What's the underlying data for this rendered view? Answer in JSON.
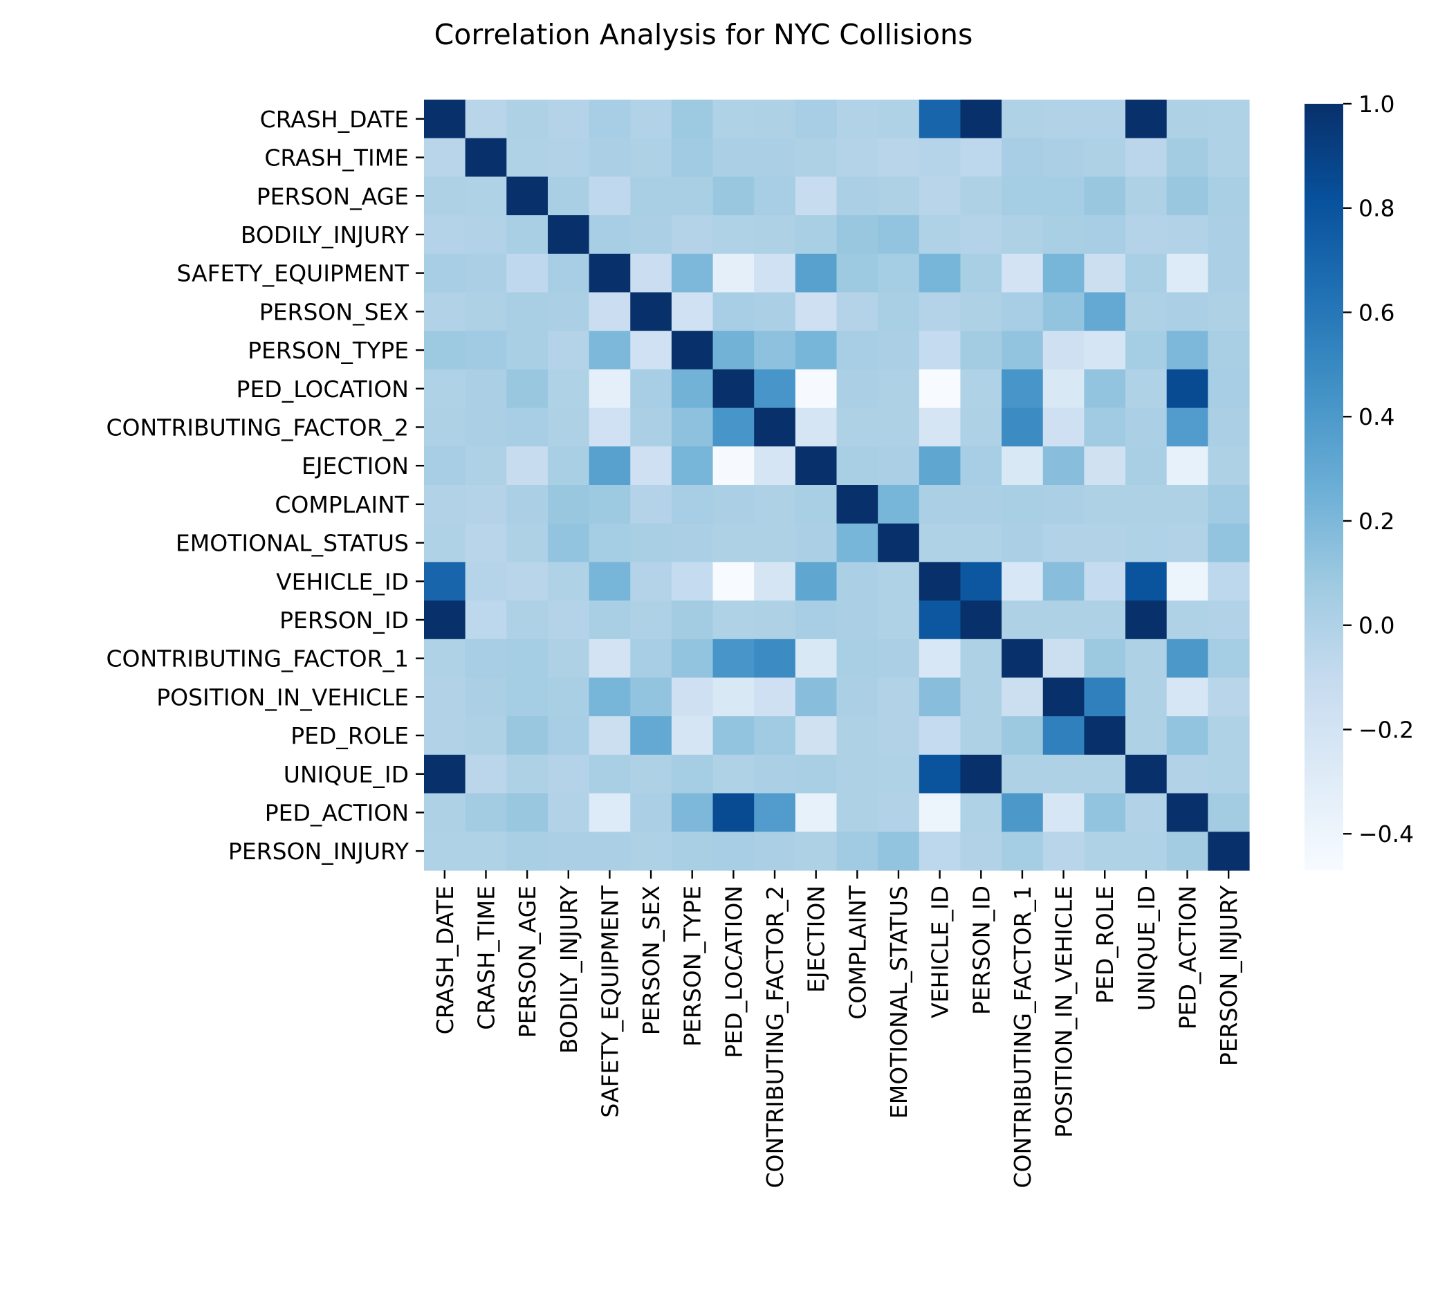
{
  "chart_data": {
    "type": "heatmap",
    "title": "Correlation Analysis for NYC Collisions",
    "xlabel": "",
    "ylabel": "",
    "labels": [
      "CRASH_DATE",
      "CRASH_TIME",
      "PERSON_AGE",
      "BODILY_INJURY",
      "SAFETY_EQUIPMENT",
      "PERSON_SEX",
      "PERSON_TYPE",
      "PED_LOCATION",
      "CONTRIBUTING_FACTOR_2",
      "EJECTION",
      "COMPLAINT",
      "EMOTIONAL_STATUS",
      "VEHICLE_ID",
      "PERSON_ID",
      "CONTRIBUTING_FACTOR_1",
      "POSITION_IN_VEHICLE",
      "PED_ROLE",
      "UNIQUE_ID",
      "PED_ACTION",
      "PERSON_INJURY"
    ],
    "colormap": "Blues",
    "color_range": [
      -0.47,
      1.0
    ],
    "colorbar_ticks": [
      "1.0",
      "0.8",
      "0.6",
      "0.4",
      "0.2",
      "0.0",
      "−0.2",
      "−0.4"
    ],
    "colorbar_tick_values": [
      1.0,
      0.8,
      0.6,
      0.4,
      0.2,
      0.0,
      -0.2,
      -0.4
    ],
    "matrix": [
      [
        1.0,
        -0.04,
        0.01,
        -0.02,
        0.04,
        -0.01,
        0.08,
        0.0,
        0.01,
        0.04,
        -0.01,
        0.0,
        0.7,
        1.0,
        0.0,
        -0.01,
        -0.01,
        1.0,
        0.01,
        0.0
      ],
      [
        -0.04,
        1.0,
        0.0,
        -0.01,
        0.02,
        0.01,
        0.07,
        0.02,
        0.02,
        0.01,
        -0.02,
        -0.04,
        -0.03,
        -0.06,
        0.04,
        0.02,
        0.01,
        -0.05,
        0.06,
        0.0
      ],
      [
        0.01,
        0.0,
        1.0,
        0.03,
        -0.07,
        0.03,
        0.03,
        0.1,
        0.04,
        -0.11,
        0.02,
        0.01,
        -0.04,
        0.01,
        0.05,
        0.05,
        0.1,
        0.01,
        0.1,
        0.03
      ],
      [
        -0.02,
        -0.01,
        0.03,
        1.0,
        0.04,
        0.02,
        -0.02,
        0.0,
        0.01,
        0.03,
        0.1,
        0.12,
        0.0,
        -0.02,
        0.01,
        0.03,
        0.04,
        -0.02,
        -0.01,
        0.02
      ],
      [
        0.04,
        0.02,
        -0.07,
        0.04,
        1.0,
        -0.14,
        0.2,
        -0.33,
        -0.17,
        0.35,
        0.08,
        0.05,
        0.22,
        0.03,
        -0.2,
        0.22,
        -0.15,
        0.03,
        -0.28,
        0.02
      ],
      [
        -0.01,
        0.01,
        0.03,
        0.02,
        -0.14,
        1.0,
        -0.17,
        0.04,
        0.02,
        -0.16,
        -0.02,
        0.03,
        -0.02,
        0.01,
        0.04,
        0.12,
        0.3,
        0.01,
        0.02,
        0.01
      ],
      [
        0.08,
        0.07,
        0.03,
        -0.02,
        0.2,
        -0.17,
        1.0,
        0.24,
        0.14,
        0.22,
        0.04,
        0.02,
        -0.1,
        0.06,
        0.12,
        -0.16,
        -0.22,
        0.05,
        0.2,
        0.03
      ],
      [
        0.0,
        0.02,
        0.1,
        0.0,
        -0.33,
        0.04,
        0.24,
        1.0,
        0.42,
        -0.46,
        0.02,
        0.01,
        -0.47,
        0.0,
        0.42,
        -0.25,
        0.12,
        0.0,
        0.85,
        0.04
      ],
      [
        0.01,
        0.02,
        0.04,
        0.01,
        -0.17,
        0.02,
        0.14,
        0.42,
        1.0,
        -0.22,
        0.01,
        0.01,
        -0.22,
        0.01,
        0.48,
        -0.16,
        0.07,
        0.02,
        0.38,
        0.02
      ],
      [
        0.04,
        0.01,
        -0.11,
        0.03,
        0.35,
        -0.16,
        0.22,
        -0.46,
        -0.22,
        1.0,
        0.03,
        0.02,
        0.32,
        0.04,
        -0.25,
        0.16,
        -0.18,
        0.03,
        -0.35,
        0.01
      ],
      [
        -0.01,
        -0.02,
        0.02,
        0.1,
        0.08,
        -0.02,
        0.04,
        0.02,
        0.01,
        0.03,
        1.0,
        0.22,
        0.02,
        0.02,
        0.03,
        0.02,
        0.01,
        0.01,
        0.01,
        0.07
      ],
      [
        0.0,
        -0.04,
        0.01,
        0.12,
        0.05,
        0.03,
        0.02,
        0.01,
        0.01,
        0.02,
        0.22,
        1.0,
        0.0,
        0.0,
        0.02,
        -0.01,
        -0.01,
        0.0,
        -0.01,
        0.12
      ],
      [
        0.7,
        -0.03,
        -0.04,
        0.0,
        0.22,
        -0.02,
        -0.1,
        -0.47,
        -0.22,
        0.32,
        0.02,
        0.0,
        1.0,
        0.78,
        -0.24,
        0.16,
        -0.1,
        0.8,
        -0.4,
        -0.06
      ],
      [
        1.0,
        -0.06,
        0.01,
        -0.02,
        0.03,
        0.01,
        0.06,
        0.0,
        0.01,
        0.04,
        0.02,
        0.0,
        0.78,
        1.0,
        0.01,
        0.01,
        0.01,
        1.0,
        0.0,
        -0.01
      ],
      [
        0.0,
        0.04,
        0.05,
        0.01,
        -0.2,
        0.04,
        0.12,
        0.42,
        0.48,
        -0.25,
        0.03,
        0.02,
        -0.24,
        0.01,
        1.0,
        -0.15,
        0.09,
        0.01,
        0.41,
        0.05
      ],
      [
        -0.01,
        0.02,
        0.05,
        0.03,
        0.22,
        0.12,
        -0.16,
        -0.25,
        -0.16,
        0.16,
        0.02,
        -0.01,
        0.16,
        0.01,
        -0.15,
        1.0,
        0.55,
        0.01,
        -0.23,
        -0.04
      ],
      [
        -0.01,
        0.01,
        0.1,
        0.04,
        -0.15,
        0.3,
        -0.22,
        0.12,
        0.07,
        -0.18,
        0.01,
        -0.01,
        -0.1,
        0.01,
        0.09,
        0.55,
        1.0,
        0.01,
        0.12,
        0.0
      ],
      [
        1.0,
        -0.05,
        0.01,
        -0.02,
        0.03,
        0.01,
        0.05,
        0.0,
        0.02,
        0.03,
        0.01,
        0.0,
        0.8,
        1.0,
        0.01,
        0.01,
        0.01,
        1.0,
        -0.01,
        0.0
      ],
      [
        0.01,
        0.06,
        0.1,
        -0.01,
        -0.28,
        0.02,
        0.2,
        0.85,
        0.38,
        -0.35,
        0.01,
        -0.01,
        -0.4,
        0.0,
        0.41,
        -0.23,
        0.12,
        -0.01,
        1.0,
        0.06
      ],
      [
        0.0,
        0.0,
        0.03,
        0.02,
        0.02,
        0.01,
        0.03,
        0.04,
        0.02,
        0.01,
        0.07,
        0.12,
        -0.06,
        -0.01,
        0.05,
        -0.04,
        0.0,
        0.0,
        0.06,
        1.0
      ]
    ]
  }
}
